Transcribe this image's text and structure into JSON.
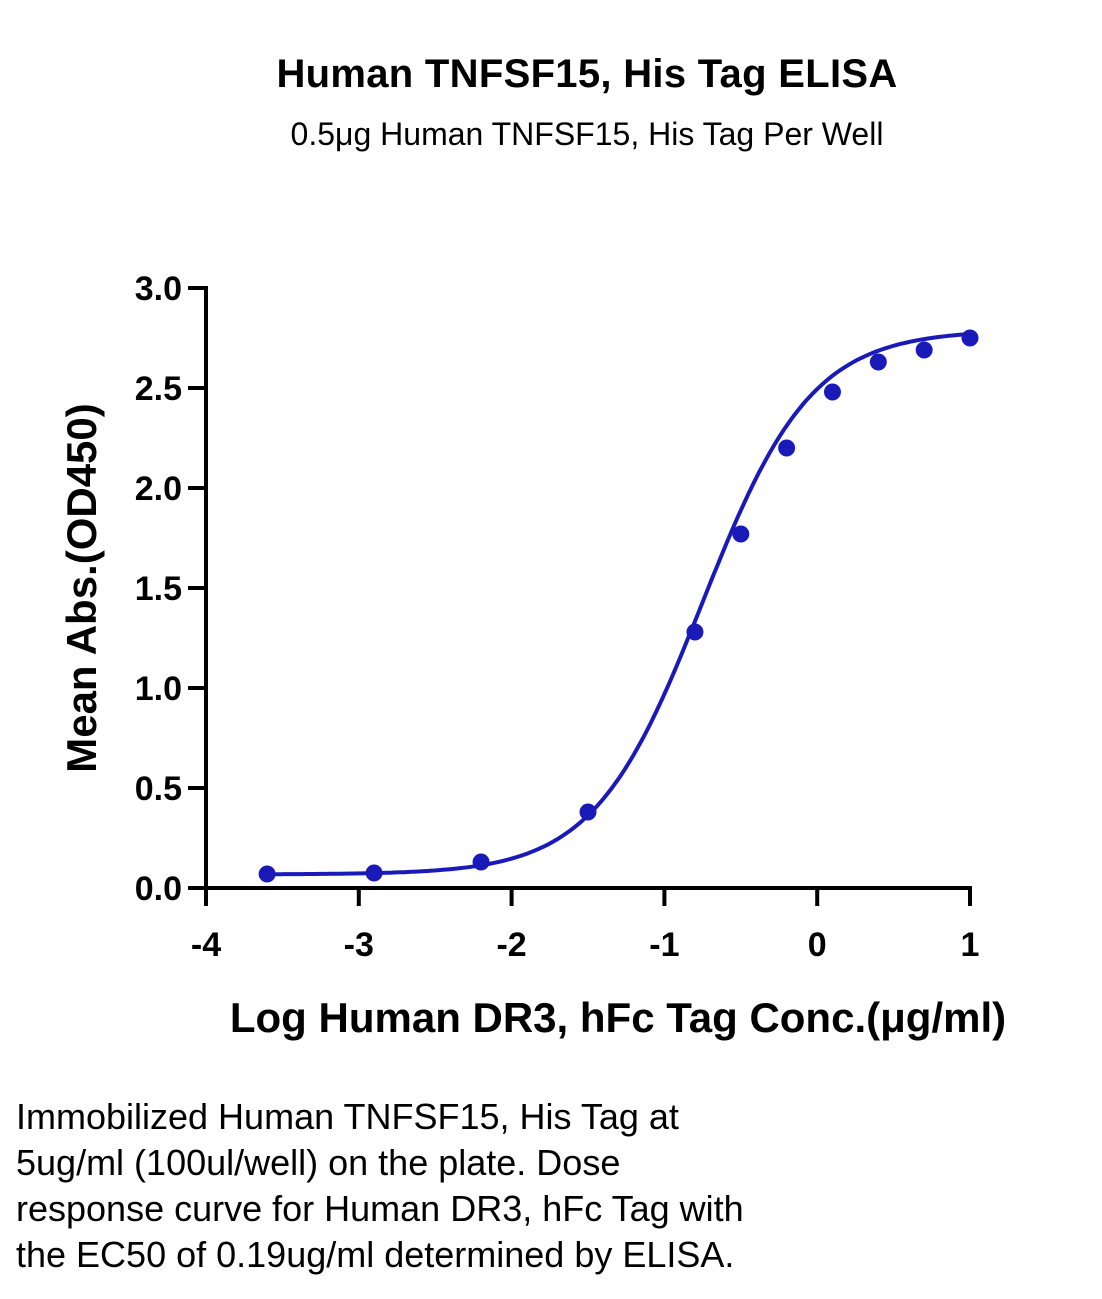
{
  "chart_data": {
    "type": "scatter",
    "title": "Human TNFSF15, His Tag ELISA",
    "subtitle": "0.5μg Human TNFSF15, His Tag Per Well",
    "xlabel": "Log Human DR3, hFc Tag Conc.(μg/ml)",
    "ylabel": "Mean Abs.(OD450)",
    "xlim": [
      -4,
      1
    ],
    "ylim": [
      0,
      3.0
    ],
    "xticks": [
      -4,
      -3,
      -2,
      -1,
      0,
      1
    ],
    "xtick_labels": [
      "-4",
      "-3",
      "-2",
      "-1",
      "0",
      "1"
    ],
    "yticks": [
      0,
      0.5,
      1.0,
      1.5,
      2.0,
      2.5,
      3.0
    ],
    "ytick_labels": [
      "0.0",
      "0.5",
      "1.0",
      "1.5",
      "2.0",
      "2.5",
      "3.0"
    ],
    "grid": false,
    "fit": "four-parameter logistic curve through points",
    "series": [
      {
        "color": "#1a1ab8",
        "x": [
          -3.6,
          -2.9,
          -2.2,
          -1.5,
          -0.8,
          -0.5,
          -0.2,
          0.1,
          0.4,
          0.7,
          1.0
        ],
        "y": [
          0.07,
          0.075,
          0.13,
          0.38,
          1.28,
          1.77,
          2.2,
          2.48,
          2.63,
          2.69,
          2.75
        ]
      }
    ]
  },
  "caption": [
    "Immobilized Human TNFSF15, His Tag at",
    "5ug/ml (100ul/well) on the plate. Dose",
    "response curve for Human DR3, hFc Tag with",
    "the EC50 of 0.19ug/ml determined by ELISA."
  ]
}
